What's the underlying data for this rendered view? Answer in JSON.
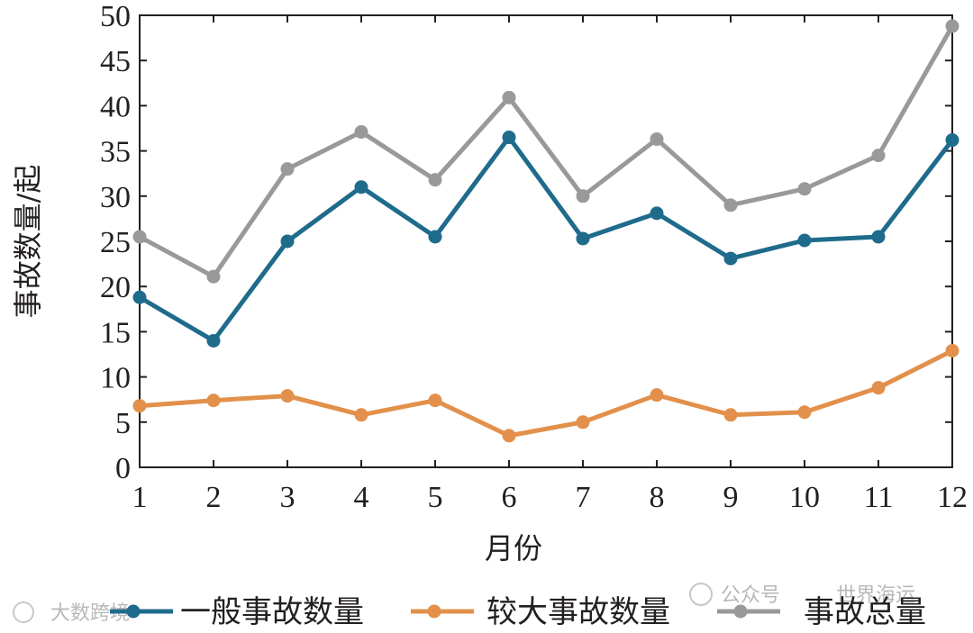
{
  "chart_data": {
    "type": "line",
    "xlabel": "月份",
    "ylabel": "事故数量/起",
    "x": [
      1,
      2,
      3,
      4,
      5,
      6,
      7,
      8,
      9,
      10,
      11,
      12
    ],
    "xlim": [
      1,
      12
    ],
    "ylim": [
      0,
      50
    ],
    "yticks": [
      0,
      5,
      10,
      15,
      20,
      25,
      30,
      35,
      40,
      45,
      50
    ],
    "grid": false,
    "legend_position": "bottom",
    "series": [
      {
        "name": "一般事故数量",
        "color": "#1f6b8c",
        "values": [
          18.8,
          14.0,
          25.0,
          31.0,
          25.5,
          36.5,
          25.3,
          28.1,
          23.1,
          25.1,
          25.5,
          36.2
        ]
      },
      {
        "name": "较大事故数量",
        "color": "#e2904b",
        "values": [
          6.8,
          7.4,
          7.9,
          5.8,
          7.4,
          3.5,
          5.0,
          8.0,
          5.8,
          6.1,
          8.8,
          12.9
        ]
      },
      {
        "name": "事故总量",
        "color": "#999999",
        "values": [
          25.5,
          21.1,
          33.0,
          37.1,
          31.8,
          40.9,
          30.0,
          36.3,
          29.0,
          30.8,
          34.5,
          48.8
        ]
      }
    ]
  },
  "watermarks": {
    "left": "大数跨境",
    "right_prefix": "公众号",
    "right": "世界海运"
  }
}
